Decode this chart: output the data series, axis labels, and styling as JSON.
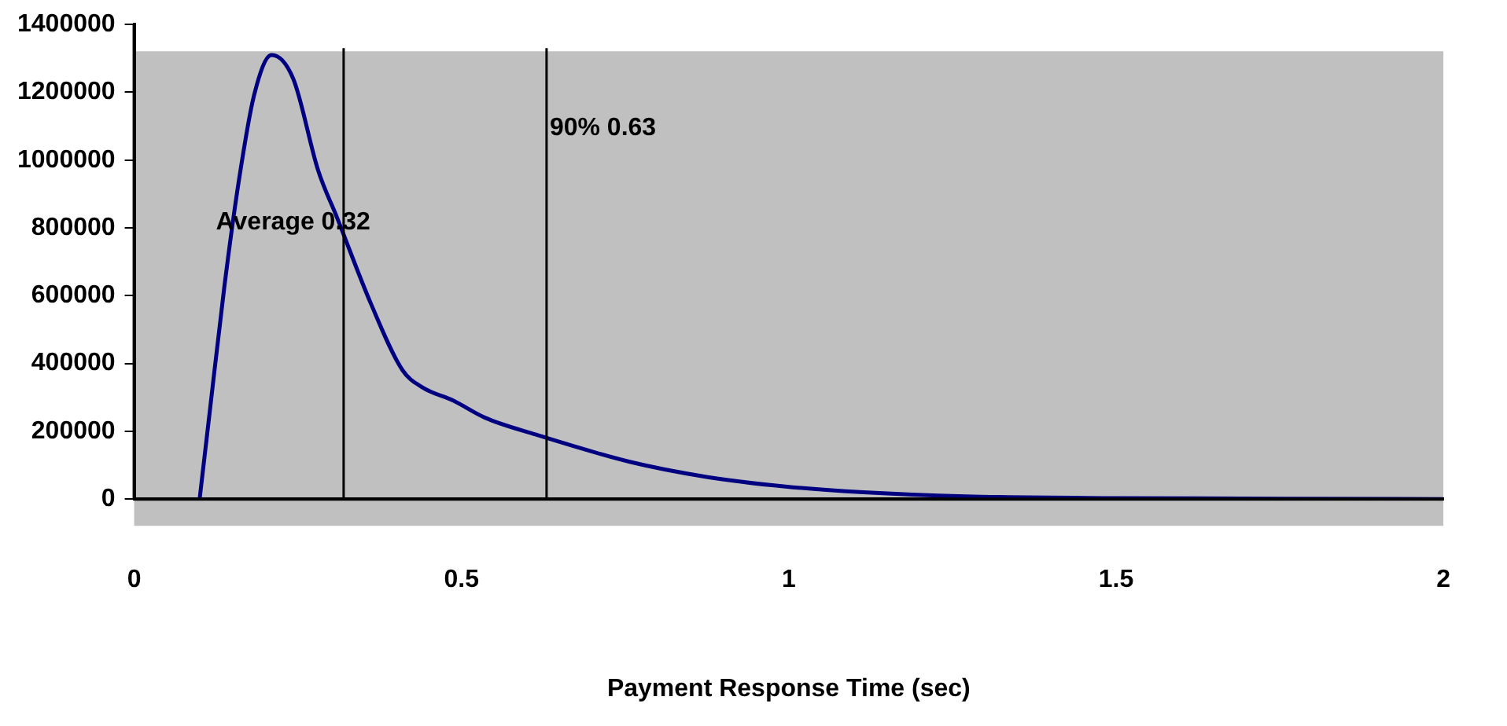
{
  "chart_data": {
    "type": "line",
    "xlabel": "Payment Response Time (sec)",
    "xlim": [
      0,
      2
    ],
    "xticks": [
      0,
      0.5,
      1,
      1.5,
      2
    ],
    "ylim": [
      0,
      1400000
    ],
    "yticks": [
      0,
      200000,
      400000,
      600000,
      800000,
      1000000,
      1200000,
      1400000
    ],
    "grid": false,
    "legend": false,
    "marker": "none",
    "line_style": "solid",
    "series": [
      {
        "color": "#000080",
        "x": [
          0.1,
          0.115,
          0.138,
          0.16,
          0.183,
          0.21,
          0.243,
          0.281,
          0.31,
          0.362,
          0.41,
          0.44,
          0.488,
          0.536,
          0.614,
          0.757,
          0.876,
          0.995,
          1.114,
          1.27,
          1.5,
          2
        ],
        "values": [
          0,
          250000,
          630000,
          940000,
          1190000,
          1310000,
          1240000,
          970000,
          830000,
          575000,
          380000,
          330000,
          290000,
          240000,
          190000,
          110000,
          65000,
          37000,
          20000,
          8000,
          3000,
          0
        ]
      }
    ],
    "ref_lines": [
      {
        "axis": "x",
        "value": 0.32,
        "label": "Average 0.32"
      },
      {
        "axis": "x",
        "value": 0.63,
        "label": "90% 0.63"
      }
    ]
  }
}
